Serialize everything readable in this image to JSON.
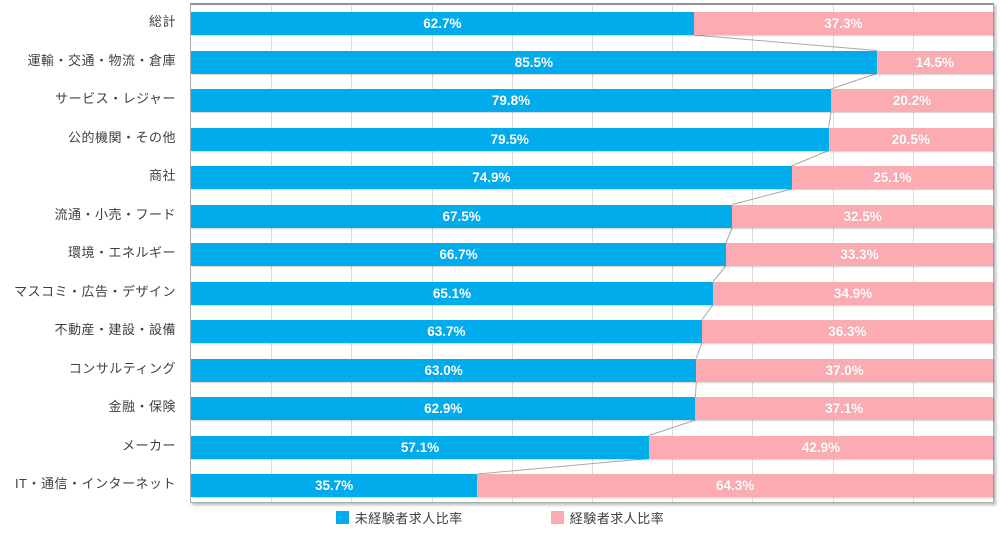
{
  "chart_data": {
    "type": "bar",
    "variant": "horizontal-100-percent-stacked",
    "categories": [
      "総計",
      "運輸・交通・物流・倉庫",
      "サービス・レジャー",
      "公的機関・その他",
      "商社",
      "流通・小売・フード",
      "環境・エネルギー",
      "マスコミ・広告・デザイン",
      "不動産・建設・設備",
      "コンサルティング",
      "金融・保険",
      "メーカー",
      "IT・通信・インターネット"
    ],
    "series": [
      {
        "name": "未経験者求人比率",
        "color": "#00ACEC",
        "values": [
          62.7,
          85.5,
          79.8,
          79.5,
          74.9,
          67.5,
          66.7,
          65.1,
          63.7,
          63.0,
          62.9,
          57.1,
          35.7
        ]
      },
      {
        "name": "経験者求人比率",
        "color": "#FAACB2",
        "values": [
          37.3,
          14.5,
          20.2,
          20.5,
          25.1,
          32.5,
          33.3,
          34.9,
          36.3,
          37.0,
          37.1,
          42.9,
          64.3
        ]
      }
    ],
    "value_suffix": "%",
    "value_decimals": 1,
    "xlim": [
      0,
      100
    ],
    "grid": true,
    "gridline_step": 10,
    "gridline_color": "#dcdcdc",
    "connector_color": "#a8a8a8",
    "data_label_color": "#ffffff",
    "legend_position": "bottom"
  }
}
